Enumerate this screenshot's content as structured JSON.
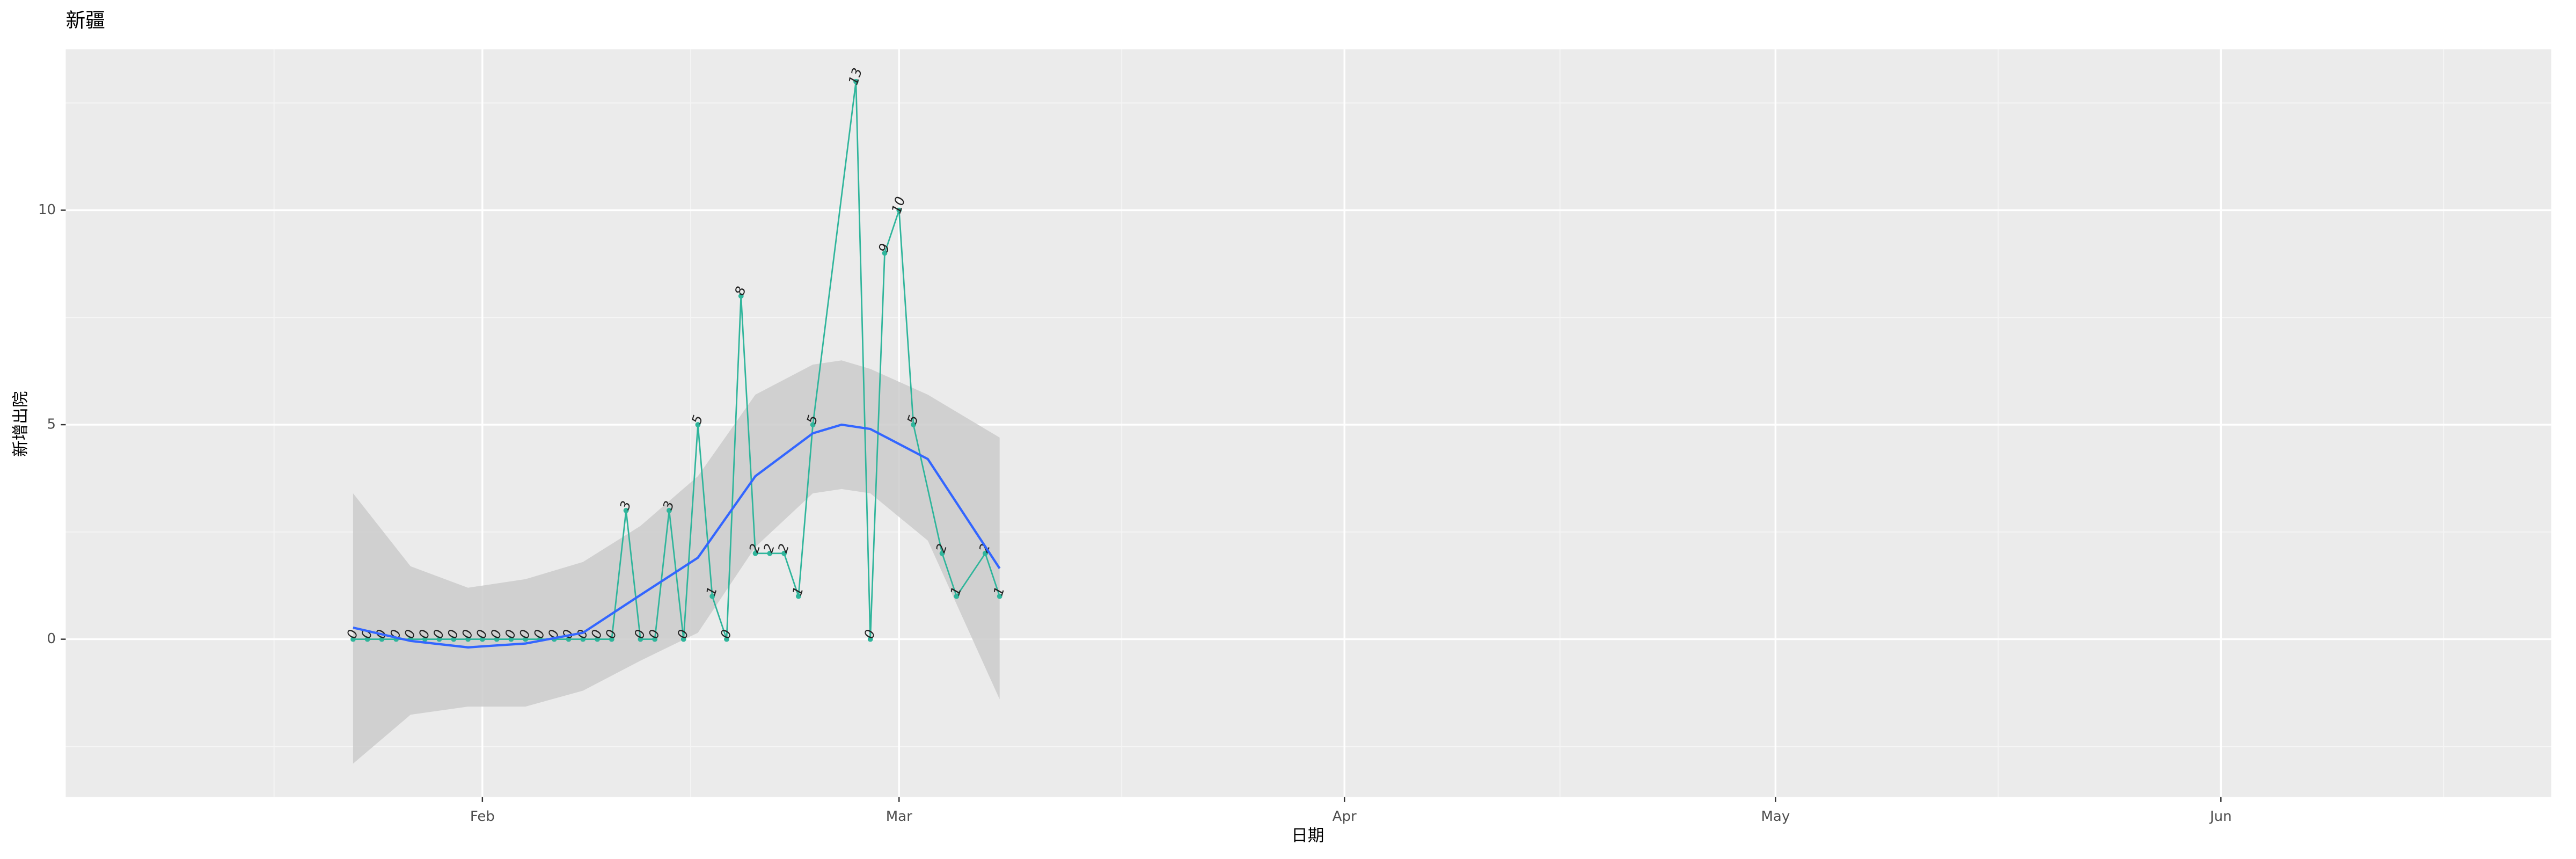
{
  "chart_data": {
    "type": "line",
    "title": "新疆",
    "x_label": "日期",
    "y_label": "新增出院",
    "xlim": [
      "01-03",
      "06-24"
    ],
    "ylim": [
      -3.68,
      13.75
    ],
    "xticks": [
      {
        "value": "02-01",
        "label": "Feb"
      },
      {
        "value": "03-01",
        "label": "Mar"
      },
      {
        "value": "04-01",
        "label": "Apr"
      },
      {
        "value": "05-01",
        "label": "May"
      },
      {
        "value": "06-01",
        "label": "Jun"
      }
    ],
    "yticks": [
      0,
      5,
      10
    ],
    "grid": true,
    "series": [
      {
        "color": "#2fb59b",
        "x": [
          "01-23",
          "01-24",
          "01-25",
          "01-26",
          "01-27",
          "01-28",
          "01-29",
          "01-30",
          "01-31",
          "02-01",
          "02-02",
          "02-03",
          "02-04",
          "02-05",
          "02-06",
          "02-07",
          "02-08",
          "02-09",
          "02-10",
          "02-11",
          "02-12",
          "02-13",
          "02-14",
          "02-15",
          "02-16",
          "02-17",
          "02-18",
          "02-19",
          "02-20",
          "02-21",
          "02-22",
          "02-23",
          "02-24",
          "02-27",
          "02-28",
          "02-29",
          "03-01",
          "03-02",
          "03-04",
          "03-05",
          "03-07",
          "03-08"
        ],
        "values": [
          0,
          0,
          0,
          0,
          0,
          0,
          0,
          0,
          0,
          0,
          0,
          0,
          0,
          0,
          0,
          0,
          0,
          0,
          0,
          3,
          0,
          0,
          3,
          0,
          5,
          1,
          0,
          8,
          2,
          2,
          2,
          1,
          5,
          13,
          0,
          9,
          10,
          5,
          2,
          1,
          2,
          1
        ]
      }
    ],
    "smooth": {
      "color": "#3366ff",
      "fill": "#cbcbcb",
      "x": [
        "01-23",
        "01-27",
        "01-31",
        "02-04",
        "02-08",
        "02-12",
        "02-16",
        "02-20",
        "02-24",
        "02-26",
        "02-28",
        "03-03",
        "03-08"
      ],
      "values": [
        0.27,
        -0.04,
        -0.19,
        -0.1,
        0.15,
        1.03,
        1.9,
        3.8,
        4.8,
        5.0,
        4.9,
        4.2,
        1.65
      ],
      "lower": [
        -2.9,
        -1.76,
        -1.57,
        -1.57,
        -1.2,
        -0.5,
        0.15,
        2.15,
        3.4,
        3.5,
        3.4,
        2.3,
        -1.4
      ],
      "upper": [
        3.4,
        1.7,
        1.2,
        1.4,
        1.8,
        2.64,
        3.8,
        5.7,
        6.4,
        6.5,
        6.3,
        5.7,
        4.7
      ]
    }
  }
}
